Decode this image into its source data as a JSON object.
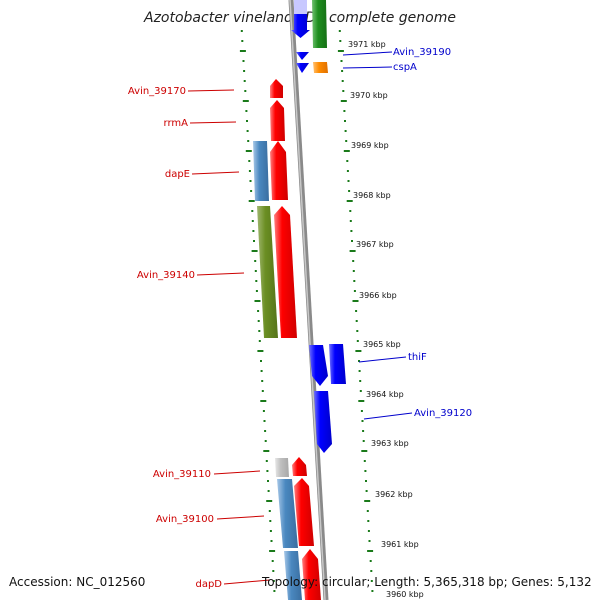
{
  "title": "Azotobacter vinelandii DJ, complete genome",
  "footer": {
    "accession": "Accession: NC_012560",
    "stats": "Topology: circular; Length: 5,365,318 bp; Genes: 5,132"
  },
  "colors": {
    "forward": "#ff0000",
    "reverse": "#0000ff",
    "tick": "#1a7a1a",
    "label_left": "#cc0000",
    "label_right": "#0000cc"
  },
  "scale_ticks": [
    "3971 kbp",
    "3970 kbp",
    "3969 kbp",
    "3968 kbp",
    "3967 kbp",
    "3966 kbp",
    "3965 kbp",
    "3964 kbp",
    "3963 kbp",
    "3962 kbp",
    "3961 kbp",
    "3960 kbp"
  ],
  "gene_labels": [
    {
      "name": "Avin_39190",
      "side": "right"
    },
    {
      "name": "cspA",
      "side": "right"
    },
    {
      "name": "Avin_39170",
      "side": "left"
    },
    {
      "name": "rrmA",
      "side": "left"
    },
    {
      "name": "dapE",
      "side": "left"
    },
    {
      "name": "Avin_39140",
      "side": "left"
    },
    {
      "name": "thiF",
      "side": "right"
    },
    {
      "name": "Avin_39120",
      "side": "right"
    },
    {
      "name": "Avin_39110",
      "side": "left"
    },
    {
      "name": "Avin_39100",
      "side": "left"
    },
    {
      "name": "dapD",
      "side": "left"
    }
  ]
}
